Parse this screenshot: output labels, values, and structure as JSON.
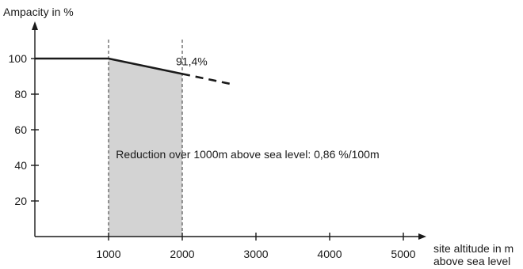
{
  "chart_data": {
    "type": "line",
    "ylabel": "Ampacity in %",
    "xlabel_lines": [
      "site altitude in m",
      "above sea level"
    ],
    "xlim": [
      0,
      5500
    ],
    "ylim": [
      0,
      115
    ],
    "x_ticks": [
      1000,
      2000,
      3000,
      4000,
      5000
    ],
    "y_ticks": [
      20,
      40,
      60,
      80,
      100
    ],
    "x_tick_labels": [
      "1000",
      "2000",
      "3000",
      "4000",
      "5000"
    ],
    "y_tick_labels": [
      "20",
      "40",
      "60",
      "80",
      "100"
    ],
    "grid": false,
    "series": [
      {
        "style": "solid",
        "x": [
          0,
          1000,
          2000
        ],
        "y": [
          100,
          100,
          91.4
        ]
      },
      {
        "style": "dashed",
        "x": [
          2000,
          2650
        ],
        "y": [
          91.4,
          85.8
        ]
      }
    ],
    "shaded_region": {
      "x": [
        1000,
        2000
      ],
      "color": "#d3d3d3"
    },
    "guide_lines_x": [
      1000,
      2000
    ],
    "annotations": [
      {
        "text": "91,4%",
        "x": 2000,
        "y": 91.4
      },
      {
        "text": "Reduction over 1000m above sea level: 0,86 %/100m",
        "x": 1100,
        "y": 44
      }
    ],
    "colors": {
      "line": "#1a1a1a",
      "shade": "#d3d3d3"
    }
  }
}
